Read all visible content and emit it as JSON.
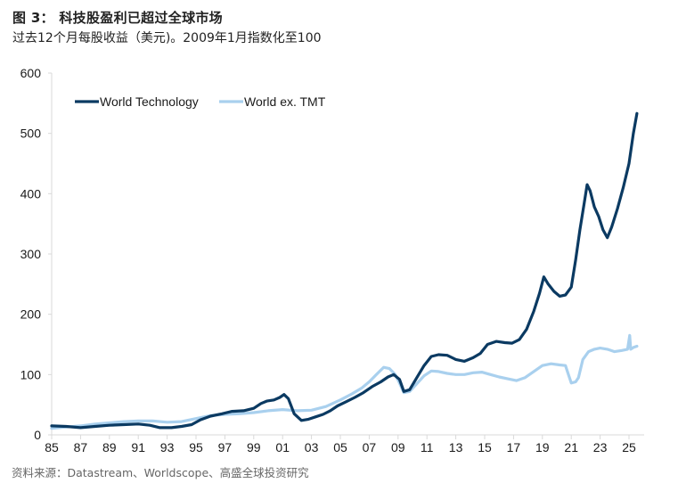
{
  "header": {
    "title": "图 3： 科技股盈利已超过全球市场",
    "subtitle": "过去12个月每股收益（美元)。2009年1月指数化至100"
  },
  "footer": {
    "source": "资料来源：Datastream、Worldscope、高盛全球投资研究"
  },
  "chart_data": {
    "type": "line",
    "title": "图 3： 科技股盈利已超过全球市场",
    "subtitle": "过去12个月每股收益（美元)。2009年1月指数化至100",
    "xlabel": "",
    "ylabel": "",
    "xlim": [
      1985,
      2026
    ],
    "ylim": [
      0,
      600
    ],
    "yticks": [
      0,
      100,
      200,
      300,
      400,
      500,
      600
    ],
    "xtick_values": [
      1985,
      1987,
      1989,
      1991,
      1993,
      1995,
      1997,
      1999,
      2001,
      2003,
      2005,
      2007,
      2009,
      2011,
      2013,
      2015,
      2017,
      2019,
      2021,
      2023,
      2025
    ],
    "xtick_labels": [
      "85",
      "87",
      "89",
      "91",
      "93",
      "95",
      "97",
      "99",
      "01",
      "03",
      "05",
      "07",
      "09",
      "11",
      "13",
      "15",
      "17",
      "19",
      "21",
      "23",
      "25"
    ],
    "grid": false,
    "legend_position": "top-left",
    "series": [
      {
        "name": "World Technology",
        "color": "#0b3a62",
        "x": [
          1985,
          1986,
          1987,
          1988,
          1989,
          1990,
          1991,
          1991.8,
          1992.5,
          1993.3,
          1994,
          1994.7,
          1995.3,
          1996,
          1996.8,
          1997.5,
          1998.3,
          1999,
          1999.5,
          1999.9,
          2000.4,
          2000.8,
          2001.1,
          2001.4,
          2001.8,
          2002.3,
          2002.8,
          2003.3,
          2003.8,
          2004.3,
          2004.8,
          2005.4,
          2006,
          2006.6,
          2007.2,
          2007.8,
          2008.3,
          2008.7,
          2009.1,
          2009.4,
          2009.8,
          2010.3,
          2010.8,
          2011.3,
          2011.8,
          2012.4,
          2013,
          2013.6,
          2014.2,
          2014.7,
          2015.2,
          2015.8,
          2016.4,
          2016.9,
          2017.4,
          2017.9,
          2018.4,
          2018.8,
          2019.1,
          2019.4,
          2019.8,
          2020.2,
          2020.6,
          2021,
          2021.3,
          2021.6,
          2021.9,
          2022.1,
          2022.3,
          2022.6,
          2022.9,
          2023.2,
          2023.5,
          2023.8,
          2024.2,
          2024.6,
          2025,
          2025.3,
          2025.55
        ],
        "values": [
          15,
          14,
          12,
          14,
          16,
          17,
          18,
          16,
          12,
          12,
          14,
          17,
          25,
          31,
          35,
          39,
          40,
          44,
          52,
          56,
          58,
          62,
          67,
          60,
          35,
          24,
          26,
          30,
          34,
          40,
          48,
          55,
          62,
          70,
          80,
          88,
          96,
          100,
          92,
          72,
          75,
          95,
          115,
          130,
          133,
          132,
          125,
          122,
          128,
          135,
          150,
          155,
          153,
          152,
          158,
          175,
          205,
          235,
          262,
          250,
          238,
          230,
          232,
          245,
          290,
          340,
          385,
          415,
          405,
          378,
          362,
          340,
          327,
          345,
          375,
          410,
          450,
          500,
          533
        ]
      },
      {
        "name": "World ex. TMT",
        "color": "#a9d0ee",
        "x": [
          1985,
          1986,
          1987,
          1988,
          1989,
          1990,
          1991,
          1992,
          1993,
          1994,
          1995,
          1996,
          1997,
          1998,
          1999,
          2000,
          2001,
          2002,
          2003,
          2004,
          2005,
          2005.8,
          2006.5,
          2007,
          2007.5,
          2008,
          2008.4,
          2008.8,
          2009.1,
          2009.4,
          2009.8,
          2010.3,
          2010.8,
          2011.3,
          2011.8,
          2012.4,
          2013,
          2013.6,
          2014.2,
          2014.8,
          2015.4,
          2016,
          2016.6,
          2017.2,
          2017.8,
          2018.4,
          2019,
          2019.6,
          2020.2,
          2020.6,
          2020.8,
          2021,
          2021.3,
          2021.5,
          2021.8,
          2022.2,
          2022.6,
          2023,
          2023.5,
          2024,
          2024.5,
          2024.9,
          2025.05,
          2025.12,
          2025.3,
          2025.55
        ],
        "values": [
          11,
          13,
          15,
          18,
          20,
          22,
          23,
          23,
          21,
          22,
          27,
          32,
          34,
          35,
          37,
          40,
          42,
          40,
          41,
          47,
          58,
          68,
          78,
          88,
          100,
          112,
          110,
          100,
          86,
          70,
          72,
          85,
          98,
          106,
          105,
          102,
          100,
          100,
          103,
          104,
          100,
          96,
          93,
          90,
          95,
          105,
          115,
          118,
          116,
          115,
          100,
          86,
          88,
          95,
          125,
          138,
          142,
          144,
          142,
          138,
          140,
          142,
          165,
          142,
          145,
          147
        ]
      }
    ]
  }
}
